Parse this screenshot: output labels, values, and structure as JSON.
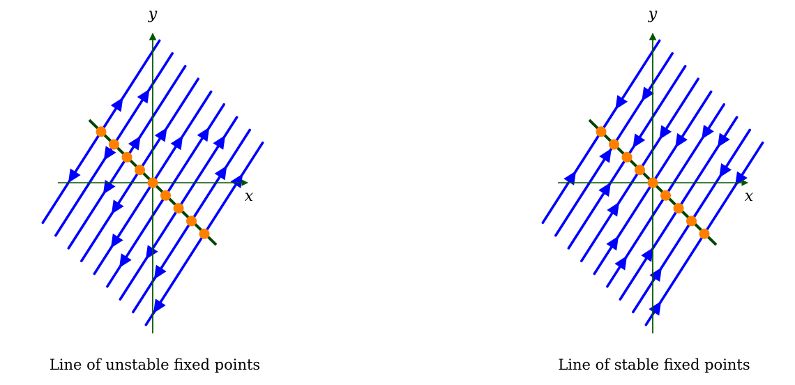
{
  "panels": [
    {
      "axis_x_label": "x",
      "axis_y_label": "y",
      "caption": "Line of unstable fixed points",
      "flow": "away_from_fixed_line"
    },
    {
      "axis_x_label": "x",
      "axis_y_label": "y",
      "caption": "Line of stable fixed points",
      "flow": "toward_fixed_line"
    }
  ],
  "colors": {
    "flow_lines": "#0000ff",
    "axes": "#005500",
    "fixed_line": "#004400",
    "fixed_points": "#ff8000"
  }
}
